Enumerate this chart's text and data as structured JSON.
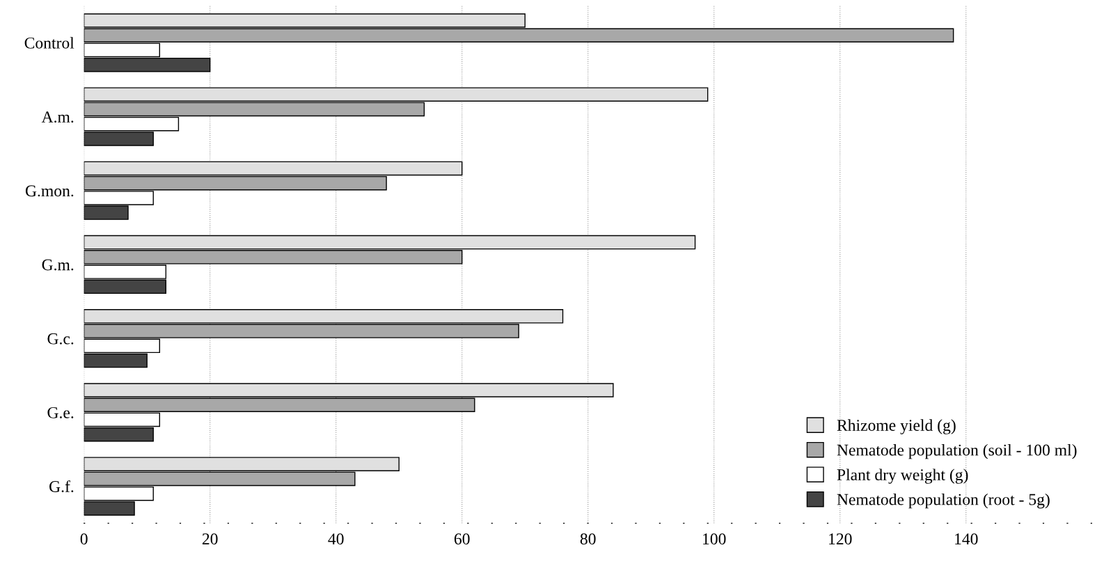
{
  "chart_data": {
    "type": "bar",
    "orientation": "horizontal",
    "categories": [
      "Control",
      "A.m.",
      "G.mon.",
      "G.m.",
      "G.c.",
      "G.e.",
      "G.f."
    ],
    "series": [
      {
        "name": "Rhizome yield (g)",
        "color": "#e0e0e0",
        "values": [
          70,
          99,
          60,
          97,
          76,
          84,
          50
        ]
      },
      {
        "name": "Nematode population (soil - 100 ml)",
        "color": "#a8a8a8",
        "values": [
          138,
          54,
          48,
          60,
          69,
          62,
          43
        ]
      },
      {
        "name": "Plant dry weight (g)",
        "color": "#ffffff",
        "values": [
          12,
          15,
          11,
          13,
          12,
          12,
          11
        ]
      },
      {
        "name": "Nematode population (root - 5g)",
        "color": "#444444",
        "values": [
          20,
          11,
          7,
          13,
          10,
          11,
          8
        ]
      }
    ],
    "xlim": [
      0,
      160
    ],
    "xticks": [
      0,
      20,
      40,
      60,
      80,
      100,
      120,
      140
    ],
    "grid": "x",
    "legend": "bottom right"
  }
}
